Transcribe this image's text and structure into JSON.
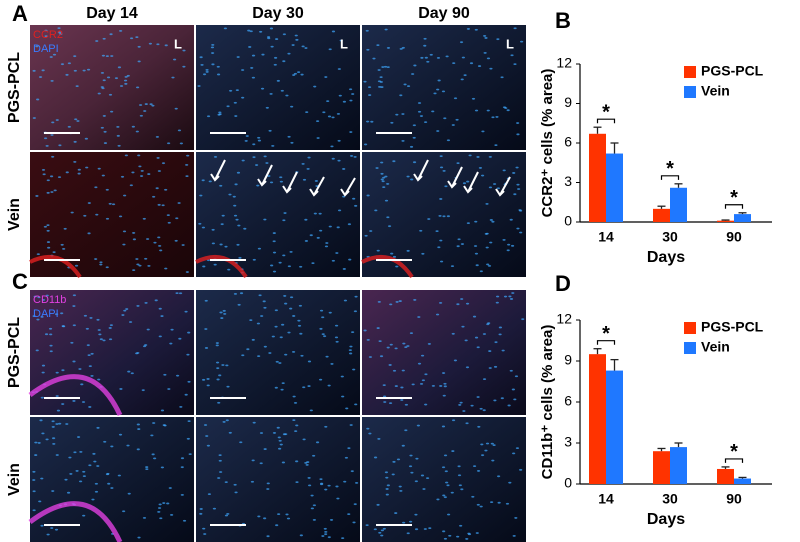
{
  "figure": {
    "panels": [
      "A",
      "B",
      "C",
      "D"
    ],
    "column_headers": [
      "Day 14",
      "Day 30",
      "Day 90"
    ],
    "row_labels": [
      "PGS-PCL",
      "Vein",
      "PGS-PCL",
      "Vein"
    ],
    "stains": [
      [
        "CCR2",
        "DAPI"
      ],
      [
        "CD11b",
        "DAPI"
      ]
    ],
    "lumen_marks": [
      "L",
      "L",
      "L"
    ]
  },
  "chart_data": [
    {
      "type": "bar",
      "x_label": "Days",
      "y_label": "CCR2⁺ cells (% area)",
      "categories": [
        "14",
        "30",
        "90"
      ],
      "series": [
        {
          "name": "PGS-PCL",
          "color": "#ff3300",
          "values": [
            6.7,
            1.0,
            0.1
          ],
          "errors": [
            0.5,
            0.2,
            0.05
          ]
        },
        {
          "name": "Vein",
          "color": "#1f78ff",
          "values": [
            5.2,
            2.6,
            0.6
          ],
          "errors": [
            0.8,
            0.3,
            0.1
          ]
        }
      ],
      "ylim": [
        0,
        12
      ],
      "yticks": [
        0,
        3,
        6,
        9,
        12
      ],
      "annotations": [
        "*",
        "*",
        "*"
      ]
    },
    {
      "type": "bar",
      "x_label": "Days",
      "y_label": "CD11b⁺ cells (% area)",
      "categories": [
        "14",
        "30",
        "90"
      ],
      "series": [
        {
          "name": "PGS-PCL",
          "color": "#ff3300",
          "values": [
            9.5,
            2.4,
            1.1
          ],
          "errors": [
            0.4,
            0.2,
            0.15
          ]
        },
        {
          "name": "Vein",
          "color": "#1f78ff",
          "values": [
            8.3,
            2.7,
            0.4
          ],
          "errors": [
            0.8,
            0.3,
            0.08
          ]
        }
      ],
      "ylim": [
        0,
        12
      ],
      "yticks": [
        0,
        3,
        6,
        9,
        12
      ],
      "annotations": [
        "*",
        "*"
      ]
    }
  ]
}
